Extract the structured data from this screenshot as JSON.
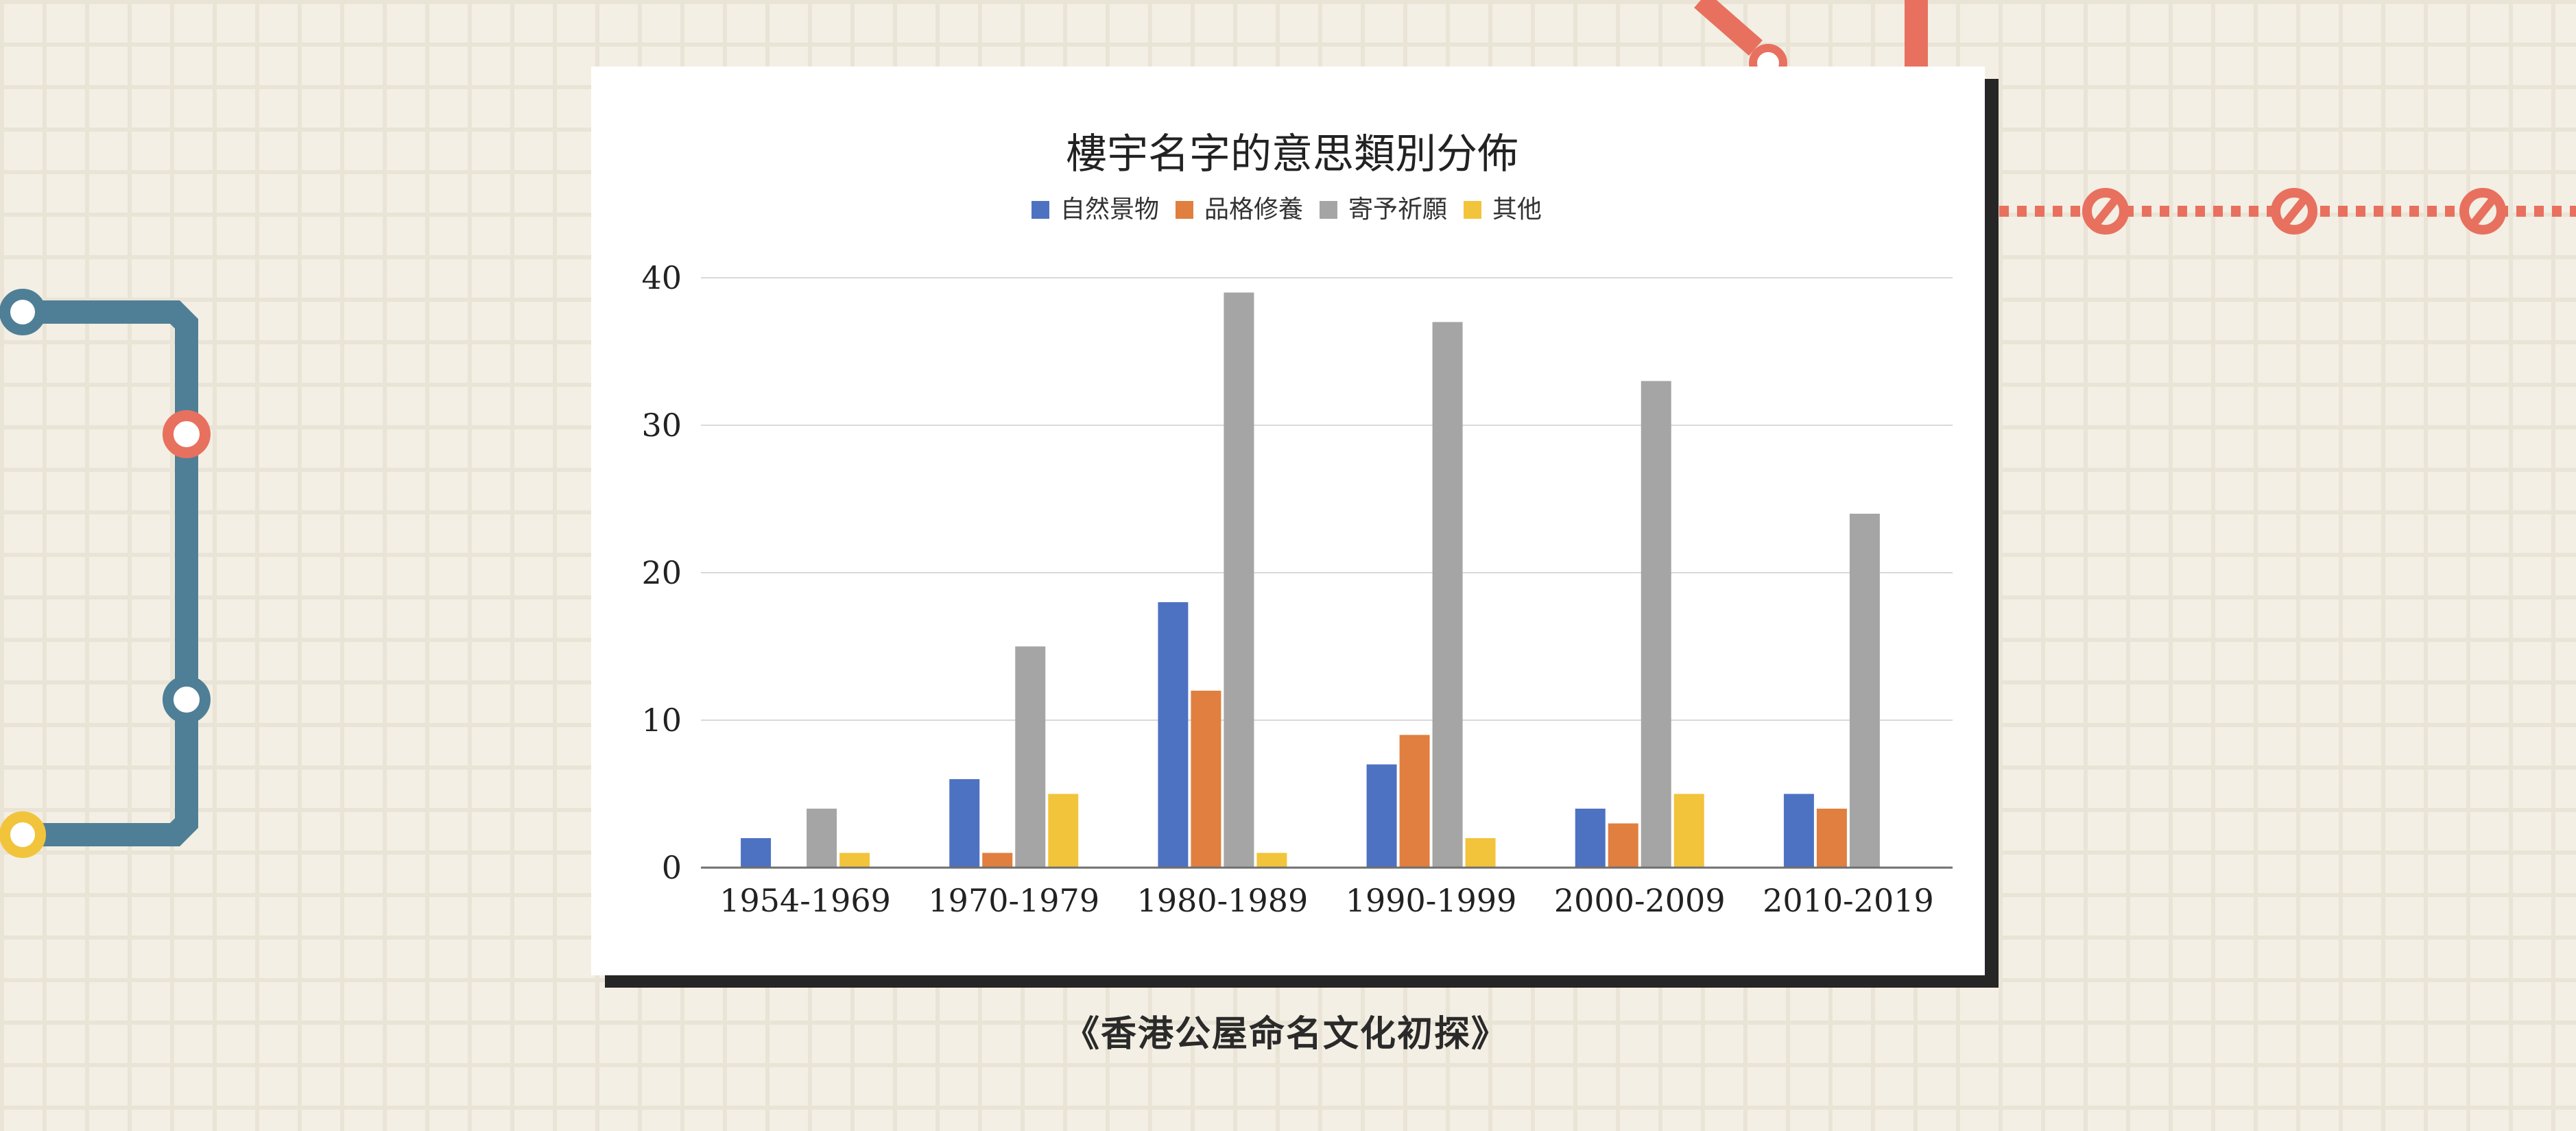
{
  "chart_data": {
    "type": "bar",
    "title": "樓宇名字的意思類別分佈",
    "categories": [
      "1954-1969",
      "1970-1979",
      "1980-1989",
      "1990-1999",
      "2000-2009",
      "2010-2019"
    ],
    "series": [
      {
        "name": "自然景物",
        "color": "#4e72c2",
        "values": [
          2,
          6,
          18,
          7,
          4,
          5
        ]
      },
      {
        "name": "品格修養",
        "color": "#e07f3f",
        "values": [
          0,
          1,
          12,
          9,
          3,
          4
        ]
      },
      {
        "name": "寄予祈願",
        "color": "#a5a5a5",
        "values": [
          4,
          15,
          39,
          37,
          33,
          24
        ]
      },
      {
        "name": "其他",
        "color": "#f2c43c",
        "values": [
          1,
          5,
          1,
          2,
          5,
          0
        ]
      }
    ],
    "yticks": [
      0,
      10,
      20,
      30,
      40
    ],
    "ylim": [
      0,
      40
    ],
    "grid": true,
    "legend_position": "top"
  },
  "caption": "《香港公屋命名文化初探》",
  "decoration_colors": {
    "line_blue": "#4f7f96",
    "line_red": "#e8705f",
    "line_yellow": "#f2c43c"
  }
}
